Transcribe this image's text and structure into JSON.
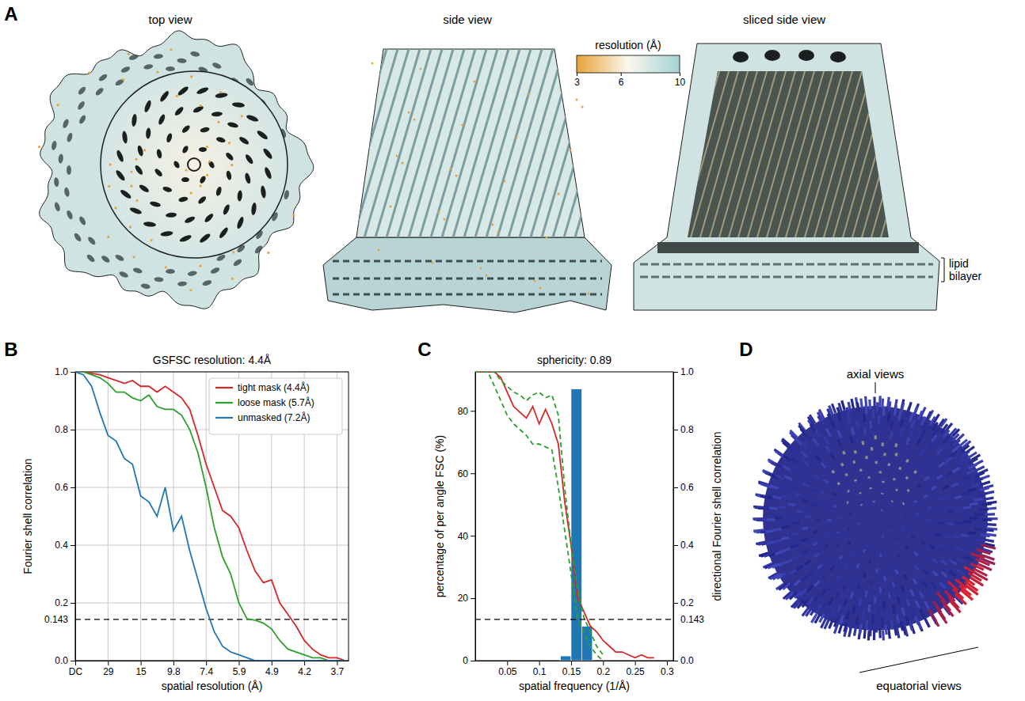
{
  "chart_data": [
    {
      "panel": "A",
      "type": "image",
      "views": [
        "top view",
        "side view",
        "sliced side view"
      ],
      "annotations": [
        "lipid bilayer"
      ],
      "colorbar": {
        "title": "resolution (Å)",
        "range": [
          3,
          10
        ],
        "ticks": [
          3,
          6,
          10
        ],
        "colors": [
          "#e8a33a",
          "#fbf7ee",
          "#a3d3d6"
        ]
      }
    },
    {
      "panel": "B",
      "type": "line",
      "title": "GSFSC resolution: 4.4Å",
      "x_label": "spatial resolution (Å)",
      "y_label": "Fourier shell correlation",
      "x": [
        0,
        0.0085,
        0.017,
        0.0255,
        0.034,
        0.0425,
        0.051,
        0.0595,
        0.068,
        0.0765,
        0.085,
        0.0935,
        0.102,
        0.1105,
        0.119,
        0.1275,
        0.136,
        0.1445,
        0.153,
        0.1615,
        0.17,
        0.1785,
        0.187,
        0.1955,
        0.204,
        0.2125,
        0.221,
        0.2295,
        0.238,
        0.2465,
        0.255,
        0.2635,
        0.272,
        0.2805
      ],
      "series": [
        {
          "name": "tight mask (4.4Å)",
          "color": "#d62728",
          "values": [
            1.0,
            1.0,
            0.995,
            0.99,
            0.98,
            0.97,
            0.96,
            0.97,
            0.95,
            0.95,
            0.93,
            0.95,
            0.93,
            0.91,
            0.87,
            0.78,
            0.68,
            0.6,
            0.52,
            0.5,
            0.46,
            0.38,
            0.31,
            0.27,
            0.28,
            0.2,
            0.16,
            0.12,
            0.07,
            0.04,
            0.02,
            0.01,
            0.01,
            0.0
          ]
        },
        {
          "name": "loose mask (5.7Å)",
          "color": "#2ca02c",
          "values": [
            1.0,
            1.0,
            0.99,
            0.98,
            0.96,
            0.93,
            0.93,
            0.91,
            0.9,
            0.92,
            0.88,
            0.87,
            0.87,
            0.85,
            0.8,
            0.72,
            0.6,
            0.46,
            0.36,
            0.3,
            0.2,
            0.145,
            0.14,
            0.13,
            0.11,
            0.07,
            0.04,
            0.03,
            0.02,
            0.01,
            0.01,
            0.0,
            0.0,
            0.0
          ]
        },
        {
          "name": "unmasked (7.2Å)",
          "color": "#1f77b4",
          "values": [
            1.0,
            0.99,
            0.95,
            0.86,
            0.78,
            0.76,
            0.7,
            0.68,
            0.57,
            0.55,
            0.5,
            0.6,
            0.45,
            0.5,
            0.38,
            0.28,
            0.18,
            0.1,
            0.05,
            0.03,
            0.02,
            0.01,
            0.0,
            0.0,
            0.0,
            0.0,
            0.0,
            0.0,
            0.0,
            0.0,
            0.0,
            0.0,
            0.0,
            0.0
          ]
        }
      ],
      "xlim": [
        0,
        0.284
      ],
      "xticks": [
        {
          "value": 0,
          "label": "DC"
        },
        {
          "value": 0.034,
          "label": "29"
        },
        {
          "value": 0.068,
          "label": "15"
        },
        {
          "value": 0.102,
          "label": "9.8"
        },
        {
          "value": 0.136,
          "label": "7.4"
        },
        {
          "value": 0.17,
          "label": "5.9"
        },
        {
          "value": 0.204,
          "label": "4.9"
        },
        {
          "value": 0.238,
          "label": "4.2"
        },
        {
          "value": 0.272,
          "label": "3.7"
        }
      ],
      "ylim": [
        0,
        1
      ],
      "yticks": [
        {
          "value": 0,
          "label": "0.0"
        },
        {
          "value": 0.2,
          "label": "0.2"
        },
        {
          "value": 0.4,
          "label": "0.4"
        },
        {
          "value": 0.6,
          "label": "0.6"
        },
        {
          "value": 0.8,
          "label": "0.8"
        },
        {
          "value": 1,
          "label": "1.0"
        }
      ],
      "threshold": {
        "value": 0.143,
        "label": "0.143"
      },
      "grid": true,
      "legend": "upper right"
    },
    {
      "panel": "C",
      "type": "bar",
      "title": "sphericity: 0.89",
      "x_label": "spatial frequency (1/Å)",
      "y_label": "percentage of per angle FSC (%)",
      "y2_label": "directional Fourier shell correlation",
      "bins": [
        0.1333,
        0.15,
        0.1667,
        0.1833
      ],
      "values": [
        1.5,
        87,
        11
      ],
      "color": "#1f77b4",
      "xlim": [
        0,
        0.31
      ],
      "xticks": [
        0.05,
        0.1,
        0.15,
        0.2,
        0.25,
        0.3
      ],
      "ylim": [
        0,
        92.5
      ],
      "yticks": [
        0,
        20,
        40,
        60,
        80
      ],
      "y2lim": [
        0,
        1
      ],
      "y2ticks": [
        {
          "value": 0,
          "label": "0.0"
        },
        {
          "value": 0.2,
          "label": "0.2"
        },
        {
          "value": 0.4,
          "label": "0.4"
        },
        {
          "value": 0.6,
          "label": "0.6"
        },
        {
          "value": 0.8,
          "label": "0.8"
        },
        {
          "value": 1,
          "label": "1.0"
        }
      ],
      "threshold": {
        "value": 0.143,
        "label": "0.143"
      },
      "series": [
        {
          "type": "line",
          "axis": "y2",
          "color": "#d62728",
          "line_style": "solid",
          "x": [
            0,
            0.01,
            0.02,
            0.03,
            0.04,
            0.05,
            0.06,
            0.07,
            0.08,
            0.09,
            0.1,
            0.11,
            0.12,
            0.13,
            0.14,
            0.15,
            0.16,
            0.17,
            0.18,
            0.19,
            0.2,
            0.21,
            0.22,
            0.23,
            0.24,
            0.25,
            0.26,
            0.27,
            0.28
          ],
          "values": [
            1.0,
            1.0,
            1.0,
            1.0,
            0.98,
            0.93,
            0.88,
            0.86,
            0.84,
            0.88,
            0.82,
            0.87,
            0.82,
            0.75,
            0.55,
            0.4,
            0.22,
            0.17,
            0.12,
            0.1,
            0.07,
            0.05,
            0.03,
            0.03,
            0.02,
            0.01,
            0.02,
            0.01,
            0.01
          ]
        },
        {
          "type": "line",
          "axis": "y2",
          "color": "#2ca02c",
          "line_style": "dashed",
          "x": [
            0,
            0.01,
            0.02,
            0.03,
            0.04,
            0.05,
            0.06,
            0.07,
            0.08,
            0.09,
            0.1,
            0.11,
            0.12,
            0.13,
            0.14,
            0.15,
            0.16,
            0.17,
            0.18,
            0.19,
            0.2
          ],
          "values": [
            1.0,
            1.0,
            1.0,
            1.0,
            0.97,
            0.95,
            0.93,
            0.92,
            0.9,
            0.92,
            0.93,
            0.91,
            0.92,
            0.85,
            0.6,
            0.4,
            0.25,
            0.15,
            0.1,
            0.05,
            0.02
          ]
        },
        {
          "type": "line",
          "axis": "y2",
          "color": "#2ca02c",
          "line_style": "dashed",
          "x": [
            0,
            0.01,
            0.02,
            0.03,
            0.04,
            0.05,
            0.06,
            0.07,
            0.08,
            0.09,
            0.1,
            0.11,
            0.12,
            0.13,
            0.14,
            0.15,
            0.16,
            0.17,
            0.18,
            0.19,
            0.2
          ],
          "values": [
            1.0,
            1.0,
            1.0,
            0.95,
            0.9,
            0.85,
            0.82,
            0.8,
            0.78,
            0.75,
            0.75,
            0.74,
            0.73,
            0.6,
            0.45,
            0.3,
            0.15,
            0.1,
            0.05,
            0.02,
            0.0
          ]
        }
      ]
    },
    {
      "panel": "D",
      "type": "image",
      "annotations": [
        "axial views",
        "equatorial views"
      ]
    }
  ]
}
